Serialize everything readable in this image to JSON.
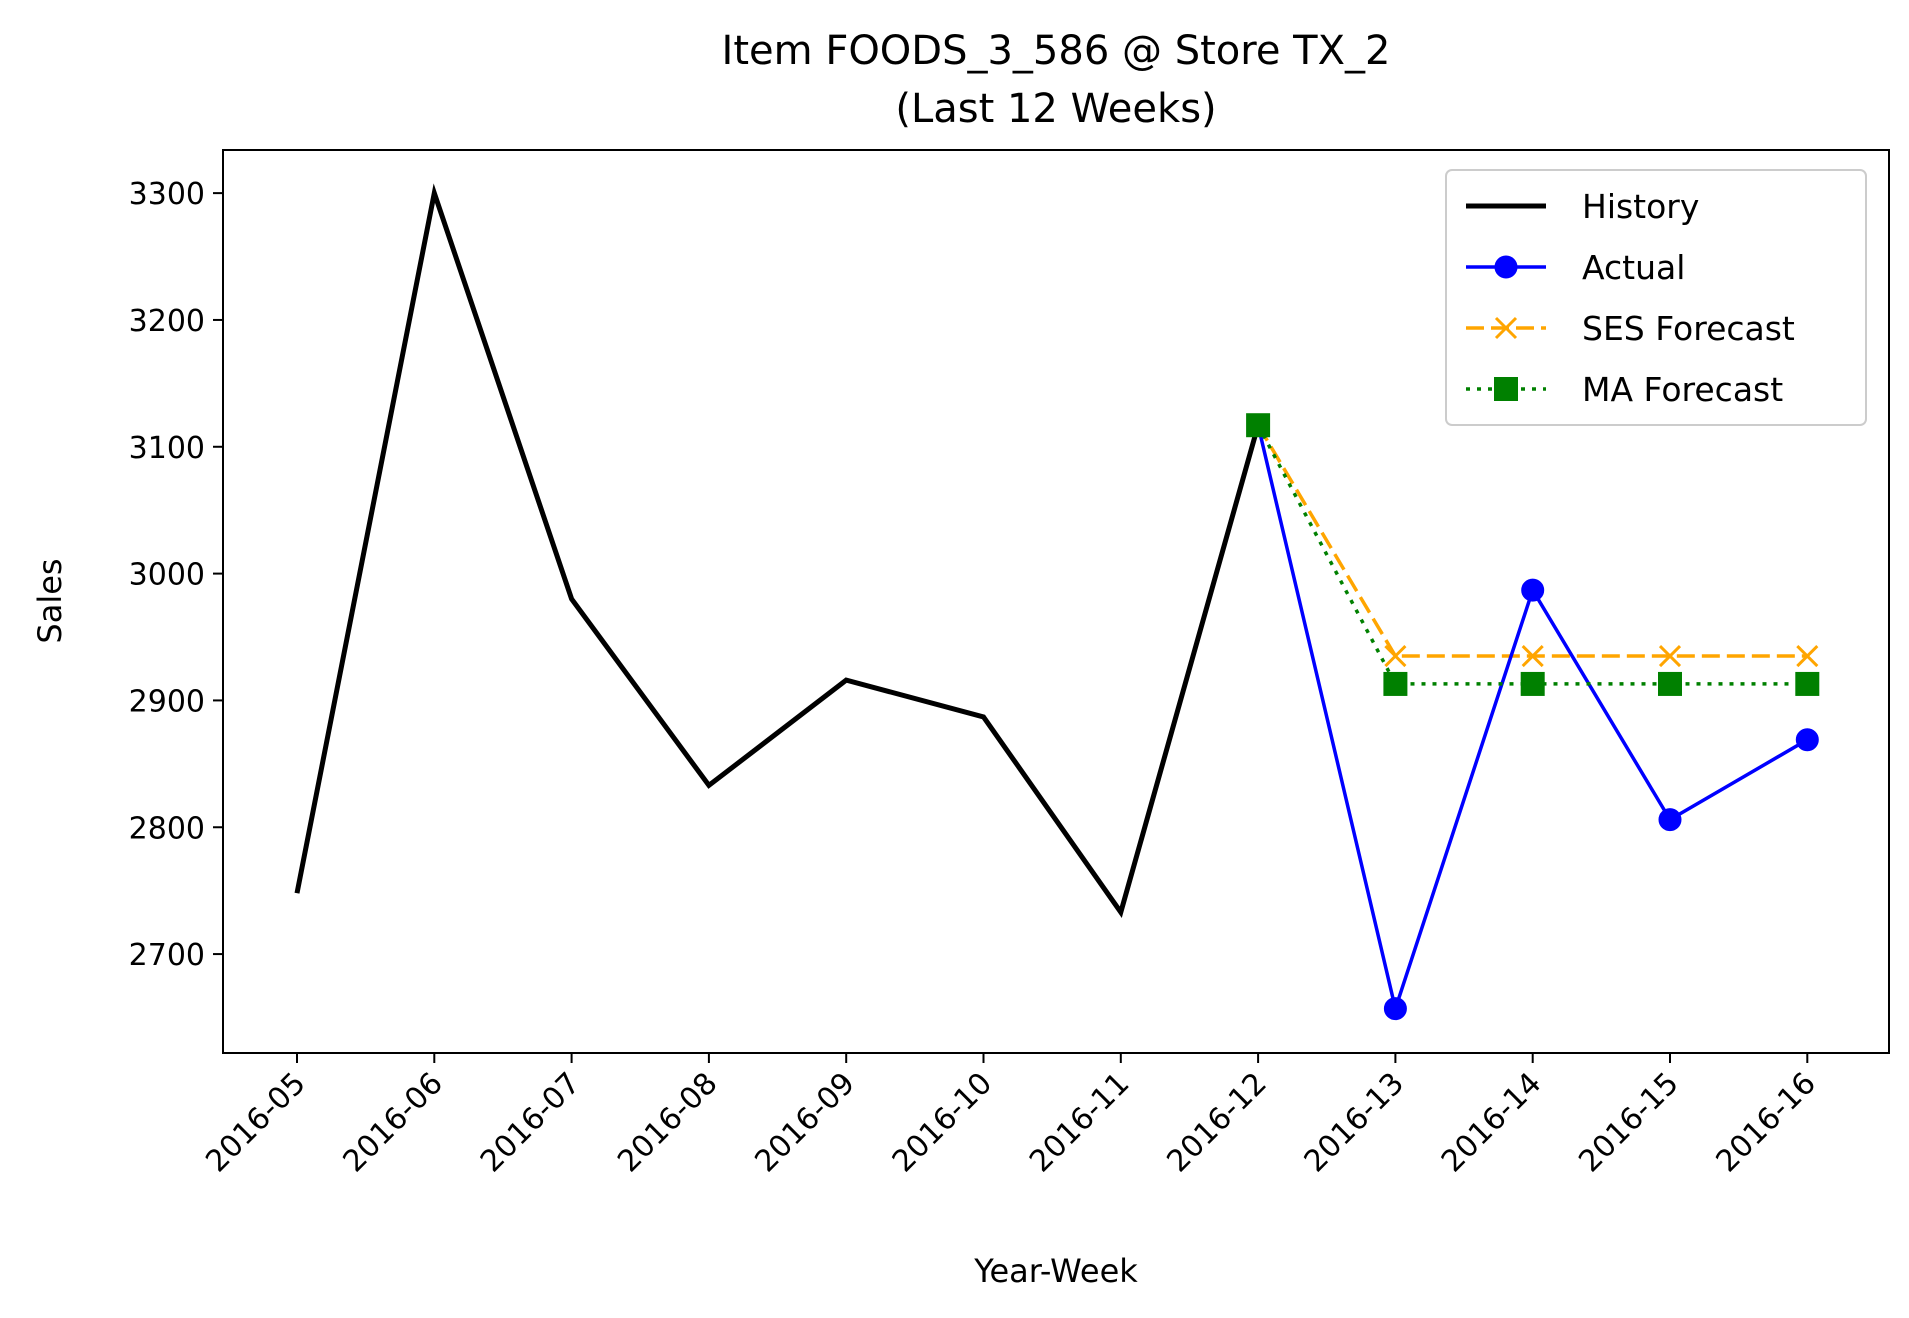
{
  "chart_data": {
    "type": "line",
    "title": "Item FOODS_3_586 @ Store TX_2",
    "subtitle": "(Last 12 Weeks)",
    "xlabel": "Year-Week",
    "ylabel": "Sales",
    "categories": [
      "2016-05",
      "2016-06",
      "2016-07",
      "2016-08",
      "2016-09",
      "2016-10",
      "2016-11",
      "2016-12",
      "2016-13",
      "2016-14",
      "2016-15",
      "2016-16"
    ],
    "ylim": [
      2622,
      3334
    ],
    "yticks": [
      2700,
      2800,
      2900,
      3000,
      3100,
      3200,
      3300
    ],
    "grid": false,
    "legend_position": "top-right",
    "series": [
      {
        "name": "History",
        "color": "#000000",
        "style": "solid",
        "marker": "none",
        "x": [
          "2016-05",
          "2016-06",
          "2016-07",
          "2016-08",
          "2016-09",
          "2016-10",
          "2016-11",
          "2016-12"
        ],
        "values": [
          2748,
          3300,
          2980,
          2833,
          2916,
          2887,
          2733,
          3117
        ]
      },
      {
        "name": "Actual",
        "color": "#0000ff",
        "style": "solid",
        "marker": "circle",
        "x": [
          "2016-12",
          "2016-13",
          "2016-14",
          "2016-15",
          "2016-16"
        ],
        "values": [
          3117,
          2657,
          2987,
          2806,
          2869
        ]
      },
      {
        "name": "SES Forecast",
        "color": "#ffa500",
        "style": "dashed",
        "marker": "x",
        "x": [
          "2016-12",
          "2016-13",
          "2016-14",
          "2016-15",
          "2016-16"
        ],
        "values": [
          3117,
          2935,
          2935,
          2935,
          2935
        ]
      },
      {
        "name": "MA Forecast",
        "color": "#008000",
        "style": "dotted",
        "marker": "square",
        "x": [
          "2016-12",
          "2016-13",
          "2016-14",
          "2016-15",
          "2016-16"
        ],
        "values": [
          3117,
          2913,
          2913,
          2913,
          2913
        ]
      }
    ]
  }
}
